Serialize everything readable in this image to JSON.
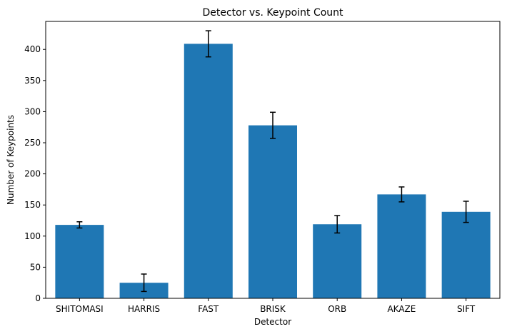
{
  "chart_data": {
    "type": "bar",
    "title": "Detector vs. Keypoint Count",
    "xlabel": "Detector",
    "ylabel": "Number of Keypoints",
    "categories": [
      "SHITOMASI",
      "HARRIS",
      "FAST",
      "BRISK",
      "ORB",
      "AKAZE",
      "SIFT"
    ],
    "values": [
      118,
      25,
      409,
      278,
      119,
      167,
      139
    ],
    "errors": [
      5,
      14,
      21,
      21,
      14,
      12,
      17
    ],
    "ylim": [
      0,
      445
    ],
    "yticks": [
      0,
      50,
      100,
      150,
      200,
      250,
      300,
      350,
      400
    ],
    "bar_color": "#1f77b4",
    "error_color": "#000000",
    "grid": false
  }
}
